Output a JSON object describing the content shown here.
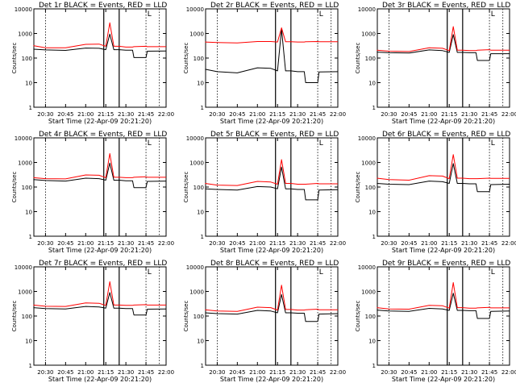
{
  "colors": {
    "background": "#ffffff",
    "events": "#000000",
    "lld": "#ff0000",
    "axis": "#000000"
  },
  "charts": {
    "title_prefix": "Det ",
    "title_suffix": " BLACK = Events, RED = LLD",
    "xlabel": "Start Time (22-Apr-09 20:21:20)",
    "ylabel": "Counts/sec",
    "x_tick_labels": [
      "20:30",
      "20:45",
      "21:00",
      "21:15",
      "21:30",
      "21:45",
      "22:00"
    ],
    "y_tick_labels": [
      "1",
      "10",
      "100",
      "1000",
      "10000"
    ],
    "marker_label": "L"
  },
  "chart_data": [
    {
      "type": "line",
      "detector": "1r",
      "title": "Det 1r BLACK = Events, RED = LLD",
      "xlabel": "Start Time (22-Apr-09 20:21:20)",
      "ylabel": "Counts/sec",
      "log_y": true,
      "ylim": [
        1,
        10000
      ],
      "xlim": [
        "20:21:20",
        "22:00:00"
      ],
      "x": [
        "20:21",
        "20:30",
        "20:45",
        "21:00",
        "21:10",
        "21:15",
        "21:18",
        "21:21",
        "21:25",
        "21:30",
        "21:35",
        "21:36",
        "21:45",
        "21:46",
        "22:00"
      ],
      "series": [
        {
          "name": "Events",
          "values": [
            230,
            215,
            205,
            255,
            250,
            220,
            950,
            220,
            220,
            210,
            210,
            105,
            105,
            190,
            195
          ]
        },
        {
          "name": "LLD",
          "values": [
            320,
            260,
            260,
            360,
            370,
            300,
            2700,
            300,
            300,
            280,
            280,
            290,
            300,
            290,
            290
          ]
        }
      ],
      "vlines": [
        "21:13:30",
        "21:25:00"
      ],
      "dotted_lines": [
        "20:30",
        "21:45",
        "21:55"
      ]
    },
    {
      "type": "line",
      "detector": "2r",
      "title": "Det 2r BLACK = Events, RED = LLD",
      "xlabel": "Start Time (22-Apr-09 20:21:20)",
      "ylabel": "Counts/sec",
      "log_y": true,
      "ylim": [
        1,
        10000
      ],
      "xlim": [
        "20:21:20",
        "22:00:00"
      ],
      "x": [
        "20:21",
        "20:30",
        "20:45",
        "21:00",
        "21:10",
        "21:15",
        "21:18",
        "21:21",
        "21:25",
        "21:30",
        "21:35",
        "21:36",
        "21:45",
        "21:46",
        "22:00"
      ],
      "series": [
        {
          "name": "Events",
          "values": [
            35,
            28,
            25,
            40,
            38,
            30,
            1500,
            30,
            30,
            28,
            28,
            10,
            10,
            27,
            28
          ]
        },
        {
          "name": "LLD",
          "values": [
            450,
            430,
            410,
            470,
            470,
            450,
            1700,
            460,
            460,
            450,
            450,
            460,
            470,
            460,
            460
          ]
        }
      ],
      "vlines": [
        "21:13:30",
        "21:25:00"
      ],
      "dotted_lines": [
        "20:30",
        "21:45",
        "21:55"
      ]
    },
    {
      "type": "line",
      "detector": "3r",
      "title": "Det 3r BLACK = Events, RED = LLD",
      "xlabel": "Start Time (22-Apr-09 20:21:20)",
      "ylabel": "Counts/sec",
      "log_y": true,
      "ylim": [
        1,
        10000
      ],
      "xlim": [
        "20:21:20",
        "22:00:00"
      ],
      "x": [
        "20:21",
        "20:30",
        "20:45",
        "21:00",
        "21:10",
        "21:15",
        "21:18",
        "21:21",
        "21:25",
        "21:30",
        "21:35",
        "21:36",
        "21:45",
        "21:46",
        "22:00"
      ],
      "series": [
        {
          "name": "Events",
          "values": [
            175,
            165,
            160,
            215,
            200,
            170,
            900,
            170,
            170,
            165,
            165,
            80,
            80,
            150,
            150
          ]
        },
        {
          "name": "LLD",
          "values": [
            210,
            190,
            185,
            260,
            250,
            200,
            1900,
            210,
            210,
            200,
            200,
            210,
            220,
            210,
            210
          ]
        }
      ],
      "vlines": [
        "21:13:30",
        "21:25:00"
      ],
      "dotted_lines": [
        "20:30",
        "21:45",
        "21:55"
      ]
    },
    {
      "type": "line",
      "detector": "4r",
      "title": "Det 4r BLACK = Events, RED = LLD",
      "xlabel": "Start Time (22-Apr-09 20:21:20)",
      "ylabel": "Counts/sec",
      "log_y": true,
      "ylim": [
        1,
        10000
      ],
      "xlim": [
        "20:21:20",
        "22:00:00"
      ],
      "x": [
        "20:21",
        "20:30",
        "20:45",
        "21:00",
        "21:10",
        "21:15",
        "21:18",
        "21:21",
        "21:25",
        "21:30",
        "21:35",
        "21:36",
        "21:45",
        "21:46",
        "22:00"
      ],
      "series": [
        {
          "name": "Events",
          "values": [
            200,
            185,
            175,
            230,
            220,
            190,
            950,
            190,
            190,
            180,
            180,
            95,
            95,
            170,
            175
          ]
        },
        {
          "name": "LLD",
          "values": [
            240,
            220,
            215,
            310,
            300,
            240,
            2300,
            250,
            250,
            240,
            240,
            250,
            260,
            250,
            250
          ]
        }
      ],
      "vlines": [
        "21:13:30",
        "21:25:00"
      ],
      "dotted_lines": [
        "20:30",
        "21:45",
        "21:55"
      ]
    },
    {
      "type": "line",
      "detector": "5r",
      "title": "Det 5r BLACK = Events, RED = LLD",
      "xlabel": "Start Time (22-Apr-09 20:21:20)",
      "ylabel": "Counts/sec",
      "log_y": true,
      "ylim": [
        1,
        10000
      ],
      "xlim": [
        "20:21:20",
        "22:00:00"
      ],
      "x": [
        "20:21",
        "20:30",
        "20:45",
        "21:00",
        "21:10",
        "21:15",
        "21:18",
        "21:21",
        "21:25",
        "21:30",
        "21:35",
        "21:36",
        "21:45",
        "21:46",
        "22:00"
      ],
      "series": [
        {
          "name": "Events",
          "values": [
            85,
            80,
            75,
            105,
            100,
            85,
            650,
            85,
            85,
            80,
            80,
            30,
            30,
            75,
            78
          ]
        },
        {
          "name": "LLD",
          "values": [
            140,
            120,
            115,
            170,
            160,
            130,
            1300,
            140,
            140,
            130,
            130,
            130,
            140,
            135,
            135
          ]
        }
      ],
      "vlines": [
        "21:13:30",
        "21:25:00"
      ],
      "dotted_lines": [
        "20:30",
        "21:45",
        "21:55"
      ]
    },
    {
      "type": "line",
      "detector": "6r",
      "title": "Det 6r BLACK = Events, RED = LLD",
      "xlabel": "Start Time (22-Apr-09 20:21:20)",
      "ylabel": "Counts/sec",
      "log_y": true,
      "ylim": [
        1,
        10000
      ],
      "xlim": [
        "20:21:20",
        "22:00:00"
      ],
      "x": [
        "20:21",
        "20:30",
        "20:45",
        "21:00",
        "21:10",
        "21:15",
        "21:18",
        "21:21",
        "21:25",
        "21:30",
        "21:35",
        "21:36",
        "21:45",
        "21:46",
        "22:00"
      ],
      "series": [
        {
          "name": "Events",
          "values": [
            140,
            130,
            125,
            175,
            165,
            140,
            900,
            140,
            140,
            135,
            135,
            65,
            65,
            125,
            130
          ]
        },
        {
          "name": "LLD",
          "values": [
            230,
            200,
            190,
            290,
            280,
            220,
            2100,
            230,
            230,
            220,
            220,
            220,
            230,
            225,
            225
          ]
        }
      ],
      "vlines": [
        "21:13:30",
        "21:25:00"
      ],
      "dotted_lines": [
        "20:30",
        "21:45",
        "21:55"
      ]
    },
    {
      "type": "line",
      "detector": "7r",
      "title": "Det 7r BLACK = Events, RED = LLD",
      "xlabel": "Start Time (22-Apr-09 20:21:20)",
      "ylabel": "Counts/sec",
      "log_y": true,
      "ylim": [
        1,
        10000
      ],
      "xlim": [
        "20:21:20",
        "22:00:00"
      ],
      "x": [
        "20:21",
        "20:30",
        "20:45",
        "21:00",
        "21:10",
        "21:15",
        "21:18",
        "21:21",
        "21:25",
        "21:30",
        "21:35",
        "21:36",
        "21:45",
        "21:46",
        "22:00"
      ],
      "series": [
        {
          "name": "Events",
          "values": [
            220,
            200,
            195,
            245,
            235,
            210,
            900,
            210,
            210,
            200,
            200,
            110,
            110,
            190,
            195
          ]
        },
        {
          "name": "LLD",
          "values": [
            280,
            250,
            245,
            340,
            330,
            270,
            2500,
            280,
            280,
            270,
            270,
            280,
            290,
            280,
            280
          ]
        }
      ],
      "vlines": [
        "21:13:30",
        "21:25:00"
      ],
      "dotted_lines": [
        "20:30",
        "21:45",
        "21:55"
      ]
    },
    {
      "type": "line",
      "detector": "8r",
      "title": "Det 8r BLACK = Events, RED = LLD",
      "xlabel": "Start Time (22-Apr-09 20:21:20)",
      "ylabel": "Counts/sec",
      "log_y": true,
      "ylim": [
        1,
        10000
      ],
      "xlim": [
        "20:21:20",
        "22:00:00"
      ],
      "x": [
        "20:21",
        "20:30",
        "20:45",
        "21:00",
        "21:10",
        "21:15",
        "21:18",
        "21:21",
        "21:25",
        "21:30",
        "21:35",
        "21:36",
        "21:45",
        "21:46",
        "22:00"
      ],
      "series": [
        {
          "name": "Events",
          "values": [
            135,
            125,
            120,
            170,
            160,
            135,
            750,
            135,
            135,
            130,
            130,
            60,
            60,
            120,
            125
          ]
        },
        {
          "name": "LLD",
          "values": [
            180,
            160,
            155,
            230,
            220,
            175,
            1800,
            185,
            185,
            175,
            175,
            180,
            190,
            180,
            180
          ]
        }
      ],
      "vlines": [
        "21:13:30",
        "21:25:00"
      ],
      "dotted_lines": [
        "20:30",
        "21:45",
        "21:55"
      ]
    },
    {
      "type": "line",
      "detector": "9r",
      "title": "Det 9r BLACK = Events, RED = LLD",
      "xlabel": "Start Time (22-Apr-09 20:21:20)",
      "ylabel": "Counts/sec",
      "log_y": true,
      "ylim": [
        1,
        10000
      ],
      "xlim": [
        "20:21:20",
        "22:00:00"
      ],
      "x": [
        "20:21",
        "20:30",
        "20:45",
        "21:00",
        "21:10",
        "21:15",
        "21:18",
        "21:21",
        "21:25",
        "21:30",
        "21:35",
        "21:36",
        "21:45",
        "21:46",
        "22:00"
      ],
      "series": [
        {
          "name": "Events",
          "values": [
            175,
            160,
            155,
            205,
            195,
            170,
            850,
            170,
            170,
            165,
            165,
            80,
            80,
            155,
            160
          ]
        },
        {
          "name": "LLD",
          "values": [
            220,
            195,
            190,
            270,
            260,
            210,
            2300,
            220,
            220,
            210,
            210,
            215,
            225,
            215,
            215
          ]
        }
      ],
      "vlines": [
        "21:13:30",
        "21:25:00"
      ],
      "dotted_lines": [
        "20:30",
        "21:45",
        "21:55"
      ]
    }
  ]
}
